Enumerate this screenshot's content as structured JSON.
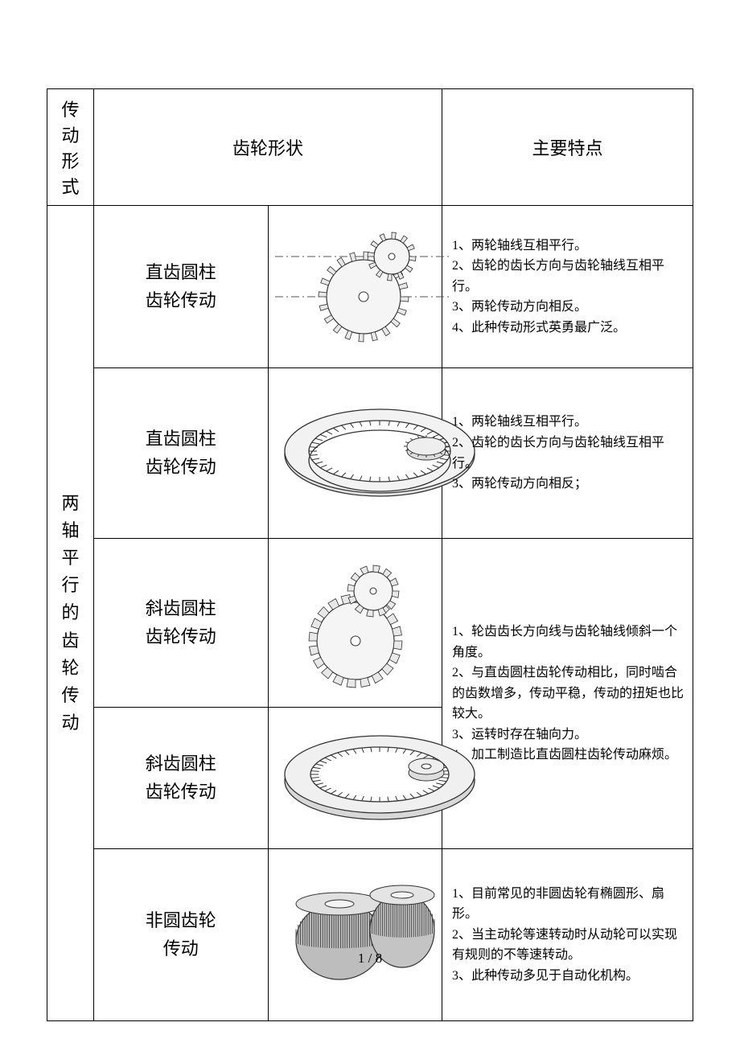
{
  "page_number": "1 / 8",
  "table": {
    "header": {
      "type": "传动\n形式",
      "shape": "齿轮形状",
      "feature": "主要特点"
    },
    "category_label": "两轴平行的齿轮传动",
    "rows": [
      {
        "name": "直齿圆柱\n齿轮传动",
        "row_class": "row-h1",
        "features": "1、两轮轴线互相平行。\n2、齿轮的齿长方向与齿轮轴线互相平行。\n3、两轮传动方向相反。\n4、此种传动形式英勇最广泛。"
      },
      {
        "name": "直齿圆柱\n齿轮传动",
        "row_class": "row-h2",
        "features": "1、两轮轴线互相平行。\n2、齿轮的齿长方向与齿轮轴线互相平行。\n3、两轮传动方向相反；"
      },
      {
        "name": "斜齿圆柱\n齿轮传动",
        "row_class": "row-h3",
        "merged_feature_rowspan": 2,
        "features": "1、轮齿齿长方向线与齿轮轴线倾斜一个角度。\n2、与直齿圆柱齿轮传动相比，同时啮合的齿数增多，传动平稳，传动的扭矩也比较大。\n3、运转时存在轴向力。\n4、加工制造比直齿圆柱齿轮传动麻烦。"
      },
      {
        "name": "斜齿圆柱\n齿轮传动",
        "row_class": "row-h4",
        "features": null
      },
      {
        "name": "非圆齿轮\n传动",
        "row_class": "row-h5",
        "features": "1、目前常见的非圆齿轮有椭圆形、扇形。\n2、当主动轮等速转动时从动轮可以实现有规则的不等速转动。\n3、此种传动多见于自动化机构。"
      }
    ]
  },
  "colors": {
    "border": "#000000",
    "background": "#ffffff",
    "text": "#000000",
    "stroke": "#333333",
    "fill_light": "#f0f0f0",
    "fill_mid": "#cccccc",
    "fill_dark": "#888888"
  }
}
